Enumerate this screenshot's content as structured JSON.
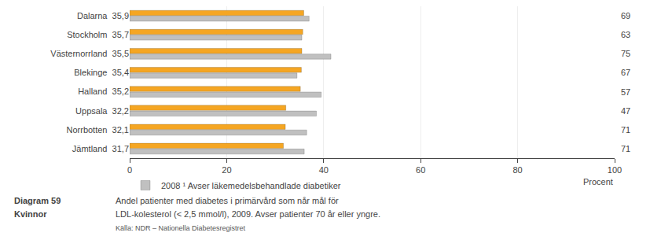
{
  "chart_data": {
    "type": "bar",
    "orientation": "horizontal",
    "categories": [
      "Dalarna  35,9",
      "Stockholm  35,7",
      "Västernorrland  35,5",
      "Blekinge  35,4",
      "Halland  35,2",
      "Uppsala  32,2",
      "Norrbotten  32,1",
      "Jämtland  31,7"
    ],
    "series": [
      {
        "name": "2008 ¹ Avser läkemedelsbehandlade diabetiker",
        "color": "#C0C0C0",
        "values": [
          37.0,
          35.5,
          41.5,
          34.5,
          39.5,
          38.5,
          36.5,
          36.0
        ]
      },
      {
        "color": "#F5A623",
        "values": [
          35.9,
          35.7,
          35.5,
          35.4,
          35.2,
          32.2,
          32.1,
          31.7
        ]
      }
    ],
    "right_labels": [
      "69",
      "63",
      "75",
      "67",
      "57",
      "47",
      "71",
      "71"
    ],
    "xlabel": "Procent",
    "xlim": [
      0,
      100
    ],
    "xticks": [
      0,
      20,
      40,
      60,
      80,
      100
    ],
    "grid": true,
    "legend": "bottom left",
    "label_lines": [
      "Diagram 59",
      "Kvinnor"
    ],
    "title_lines": [
      "Andel patienter med diabetes i primärvård som når mål för",
      "LDL-kolesterol (< 2,5 mmol/l), 2009. Avser patienter 70 år eller yngre."
    ],
    "source": "Källa: NDR – Nationella Diabetesregistret"
  }
}
